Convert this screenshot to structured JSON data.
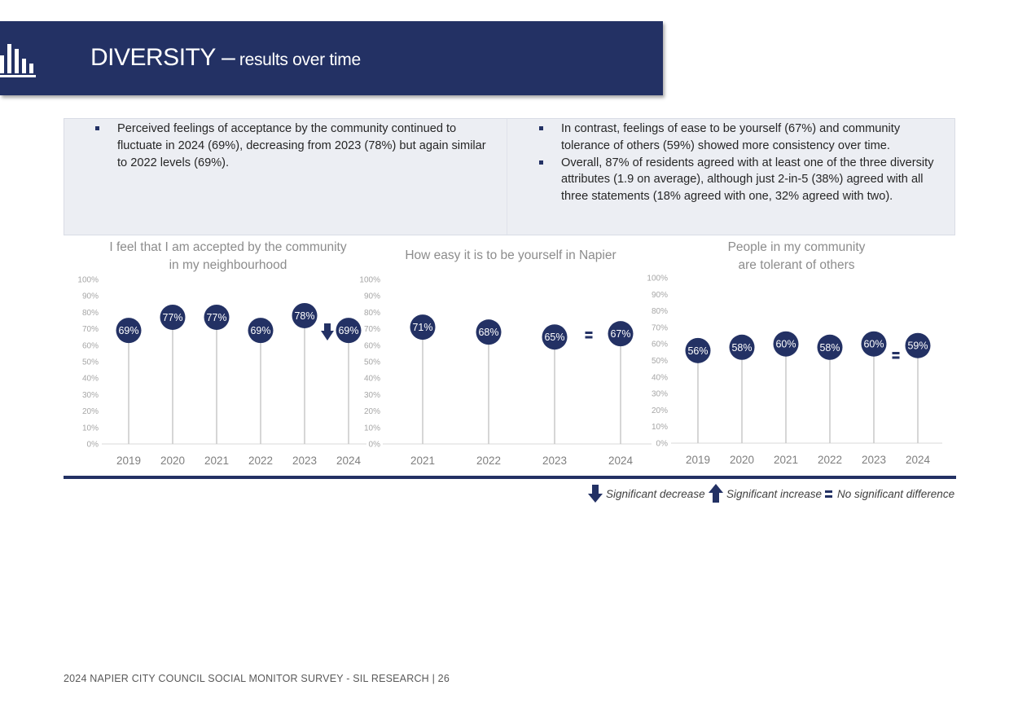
{
  "header": {
    "title_main": "DIVERSITY –",
    "title_sub": " results over time",
    "icon": "bar-chart-icon"
  },
  "bullets": {
    "left": [
      "Perceived feelings of acceptance by the community continued to fluctuate in 2024 (69%), decreasing from 2023 (78%) but again similar to 2022 levels (69%)."
    ],
    "right": [
      "In contrast, feelings of ease to be yourself (67%) and community tolerance of others (59%) showed more consistency over time.",
      "Overall, 87% of residents agreed with at least one of the three diversity attributes (1.9 on average), although just 2-in-5 (38%) agreed with all three statements (18% agreed with one, 32% agreed with two)."
    ]
  },
  "colors": {
    "navy": "#233164",
    "axis_text": "#a6a6a6",
    "stem": "#c8c8c8",
    "title_text": "#8c8c8c"
  },
  "chart_data": [
    {
      "type": "lollipop",
      "title_lines": [
        "I feel that I am accepted by the community",
        "in my neighbourhood"
      ],
      "categories": [
        "2019",
        "2020",
        "2021",
        "2022",
        "2023",
        "2024"
      ],
      "values": [
        69,
        77,
        77,
        69,
        78,
        69
      ],
      "labels": [
        "69%",
        "77%",
        "77%",
        "69%",
        "78%",
        "69%"
      ],
      "yticks": [
        "0%",
        "10%",
        "20%",
        "30%",
        "40%",
        "50%",
        "60%",
        "70%",
        "80%",
        "90%",
        "100%"
      ],
      "ylim": [
        0,
        100
      ],
      "significance": "decrease"
    },
    {
      "type": "lollipop",
      "title_lines": [
        "How easy it is to be yourself in Napier"
      ],
      "categories": [
        "2021",
        "2022",
        "2023",
        "2024"
      ],
      "values": [
        71,
        68,
        65,
        67
      ],
      "labels": [
        "71%",
        "68%",
        "65%",
        "67%"
      ],
      "yticks": [
        "0%",
        "10%",
        "20%",
        "30%",
        "40%",
        "50%",
        "60%",
        "70%",
        "80%",
        "90%",
        "100%"
      ],
      "ylim": [
        0,
        100
      ],
      "significance": "none"
    },
    {
      "type": "lollipop",
      "title_lines": [
        "People in my community",
        "are tolerant of others"
      ],
      "categories": [
        "2019",
        "2020",
        "2021",
        "2022",
        "2023",
        "2024"
      ],
      "values": [
        56,
        58,
        60,
        58,
        60,
        59
      ],
      "labels": [
        "56%",
        "58%",
        "60%",
        "58%",
        "60%",
        "59%"
      ],
      "yticks": [
        "0%",
        "10%",
        "20%",
        "30%",
        "40%",
        "50%",
        "60%",
        "70%",
        "80%",
        "90%",
        "100%"
      ],
      "ylim": [
        0,
        100
      ],
      "significance": "none"
    }
  ],
  "legend": {
    "decrease": "Significant decrease",
    "increase": "Significant increase",
    "no_difference": "No significant difference"
  },
  "footer": "2024 NAPIER CITY COUNCIL SOCIAL MONITOR SURVEY - SIL RESEARCH | 26"
}
